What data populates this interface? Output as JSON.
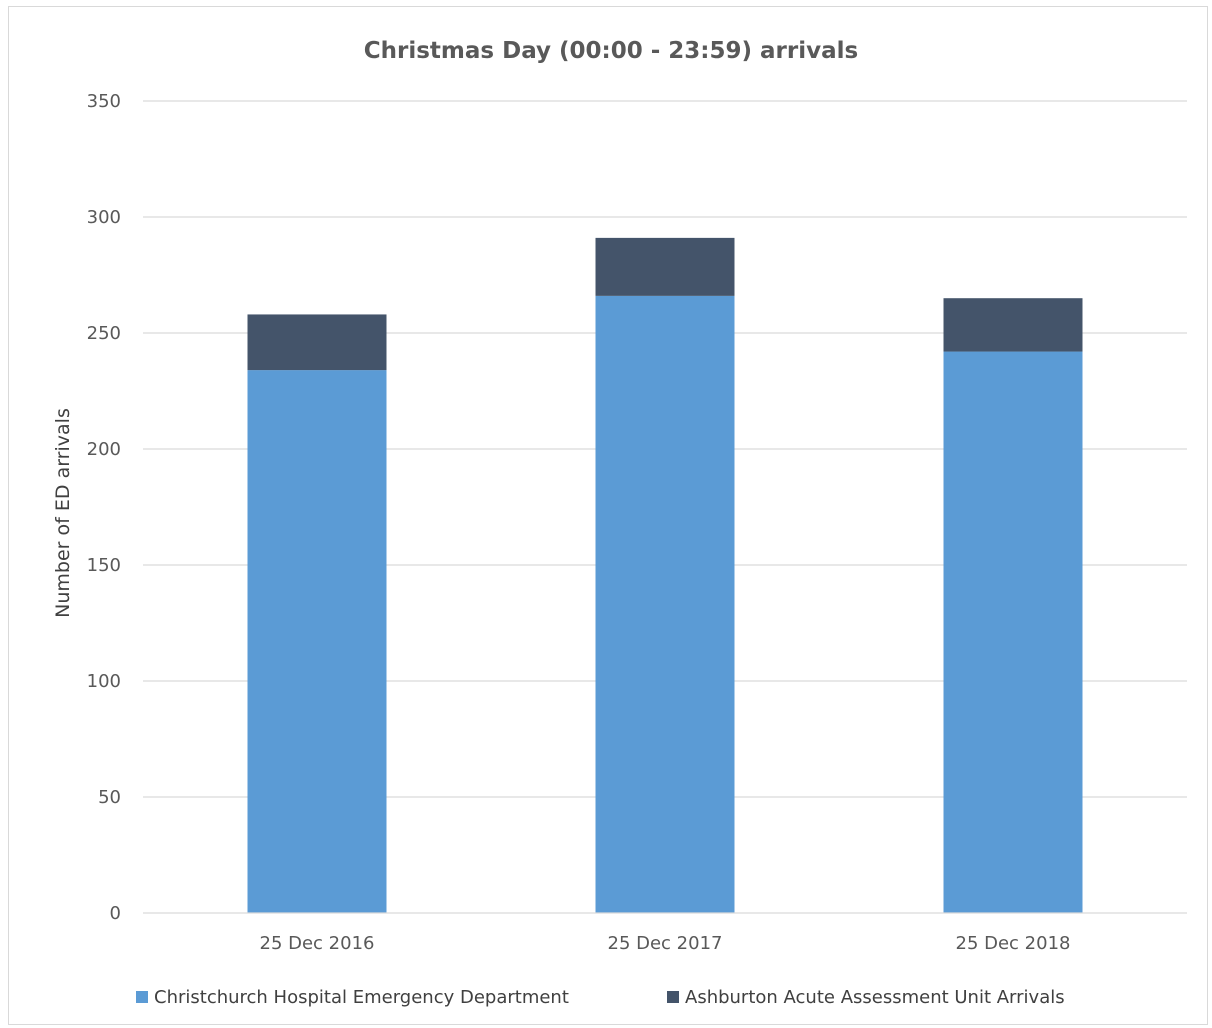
{
  "chart_data": {
    "type": "bar",
    "stacked": true,
    "title": "Christmas Day (00:00 - 23:59) arrivals",
    "xlabel": "",
    "ylabel": "Number of ED arrivals",
    "ylim": [
      0,
      350
    ],
    "yticks": [
      0,
      50,
      100,
      150,
      200,
      250,
      300,
      350
    ],
    "grid": true,
    "legend_position": "bottom",
    "categories": [
      "25 Dec 2016",
      "25 Dec 2017",
      "25 Dec 2018"
    ],
    "series": [
      {
        "name": "Christchurch Hospital Emergency Department",
        "color": "#5b9bd5",
        "values": [
          234,
          266,
          242
        ]
      },
      {
        "name": "Ashburton Acute Assessment Unit Arrivals",
        "color": "#44546a",
        "values": [
          24,
          25,
          23
        ]
      }
    ]
  }
}
